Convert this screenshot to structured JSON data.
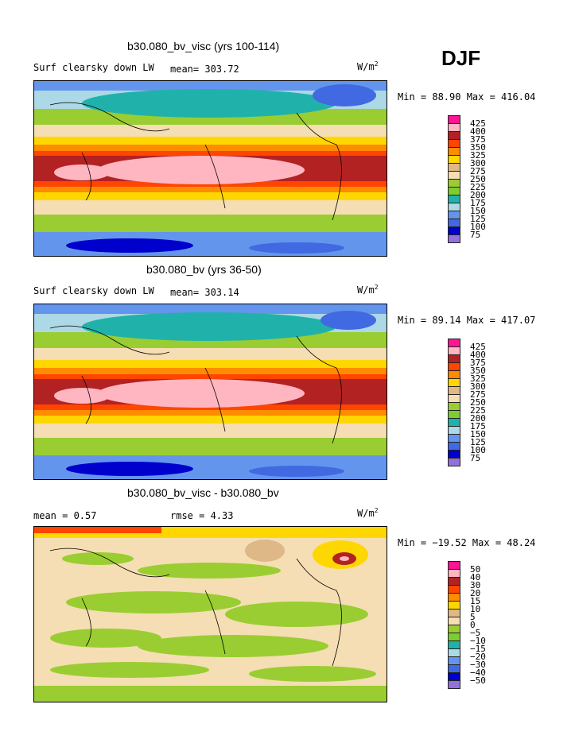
{
  "season": "DJF",
  "units_base": "W/m",
  "units_exp": "2",
  "panels": [
    {
      "title": "b30.080_bv_visc (yrs 100-114)",
      "variable": "Surf clearsky down LW",
      "stat_left": "mean= 303.72",
      "stat_right": "",
      "minmax": "Min =  88.90 Max = 416.04",
      "legend": [
        "425",
        "400",
        "375",
        "350",
        "325",
        "300",
        "275",
        "250",
        "225",
        "200",
        "175",
        "150",
        "125",
        "100",
        "75"
      ]
    },
    {
      "title": "b30.080_bv (yrs 36-50)",
      "variable": "Surf clearsky down LW",
      "stat_left": "mean= 303.14",
      "stat_right": "",
      "minmax": "Min =  89.14 Max = 417.07",
      "legend": [
        "425",
        "400",
        "375",
        "350",
        "325",
        "300",
        "275",
        "250",
        "225",
        "200",
        "175",
        "150",
        "125",
        "100",
        "75"
      ]
    },
    {
      "title": "b30.080_bv_visc - b30.080_bv",
      "variable": "",
      "stat_left": "mean =   0.57",
      "stat_right": "rmse =   4.33",
      "minmax": "Min = −19.52 Max =  48.24",
      "legend": [
        "50",
        "40",
        "30",
        "20",
        "15",
        "10",
        "5",
        "0",
        "−5",
        "−10",
        "−15",
        "−20",
        "−30",
        "−40",
        "−50"
      ]
    }
  ],
  "colors": {
    "scale": [
      "#ff1493",
      "#ffb6c1",
      "#b22222",
      "#ff4500",
      "#ff8c00",
      "#ffd700",
      "#deb887",
      "#f5deb3",
      "#9acd32",
      "#7ccd32",
      "#20b2aa",
      "#add8e6",
      "#6495ed",
      "#4169e1",
      "#0000cd",
      "#9370db"
    ]
  },
  "chart_data": [
    {
      "type": "heatmap",
      "title": "b30.080_bv_visc (yrs 100-114)",
      "variable": "Surf clearsky down LW",
      "mean": 303.72,
      "min": 88.9,
      "max": 416.04,
      "units": "W/m2",
      "contour_levels": [
        75,
        100,
        125,
        150,
        175,
        200,
        225,
        250,
        275,
        300,
        325,
        350,
        375,
        400,
        425
      ]
    },
    {
      "type": "heatmap",
      "title": "b30.080_bv (yrs 36-50)",
      "variable": "Surf clearsky down LW",
      "mean": 303.14,
      "min": 89.14,
      "max": 417.07,
      "units": "W/m2",
      "contour_levels": [
        75,
        100,
        125,
        150,
        175,
        200,
        225,
        250,
        275,
        300,
        325,
        350,
        375,
        400,
        425
      ]
    },
    {
      "type": "heatmap",
      "title": "b30.080_bv_visc - b30.080_bv",
      "mean": 0.57,
      "rmse": 4.33,
      "min": -19.52,
      "max": 48.24,
      "units": "W/m2",
      "contour_levels": [
        -50,
        -40,
        -30,
        -20,
        -15,
        -10,
        -5,
        0,
        5,
        10,
        15,
        20,
        30,
        40,
        50
      ]
    }
  ]
}
